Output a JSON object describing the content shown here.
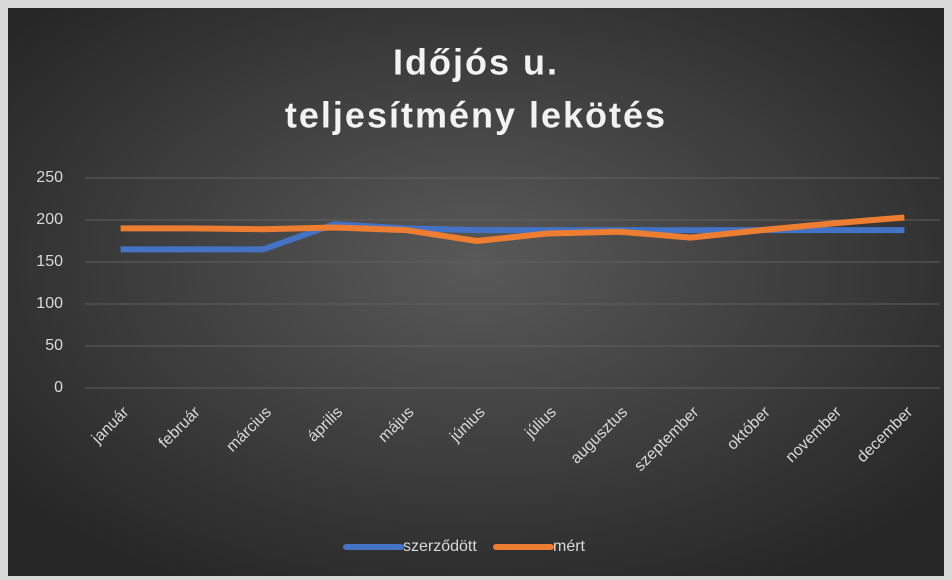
{
  "chart_data": {
    "type": "line",
    "title": [
      "Időjós u.",
      "teljesítmény lekötés"
    ],
    "categories": [
      "január",
      "február",
      "március",
      "április",
      "május",
      "június",
      "július",
      "augusztus",
      "szeptember",
      "október",
      "november",
      "december"
    ],
    "series": [
      {
        "name": "szerződött",
        "color": "#4472c4",
        "values": [
          165,
          165,
          165,
          195,
          190,
          188,
          188,
          188,
          188,
          188,
          188,
          188
        ]
      },
      {
        "name": "mért",
        "color": "#ed7d31",
        "values": [
          190,
          190,
          189,
          191,
          188,
          175,
          184,
          186,
          179,
          188,
          196,
          203
        ]
      }
    ],
    "ylim": [
      0,
      250
    ],
    "yticks": [
      0,
      50,
      100,
      150,
      200,
      250
    ],
    "grid": true,
    "legend": "bottom"
  }
}
